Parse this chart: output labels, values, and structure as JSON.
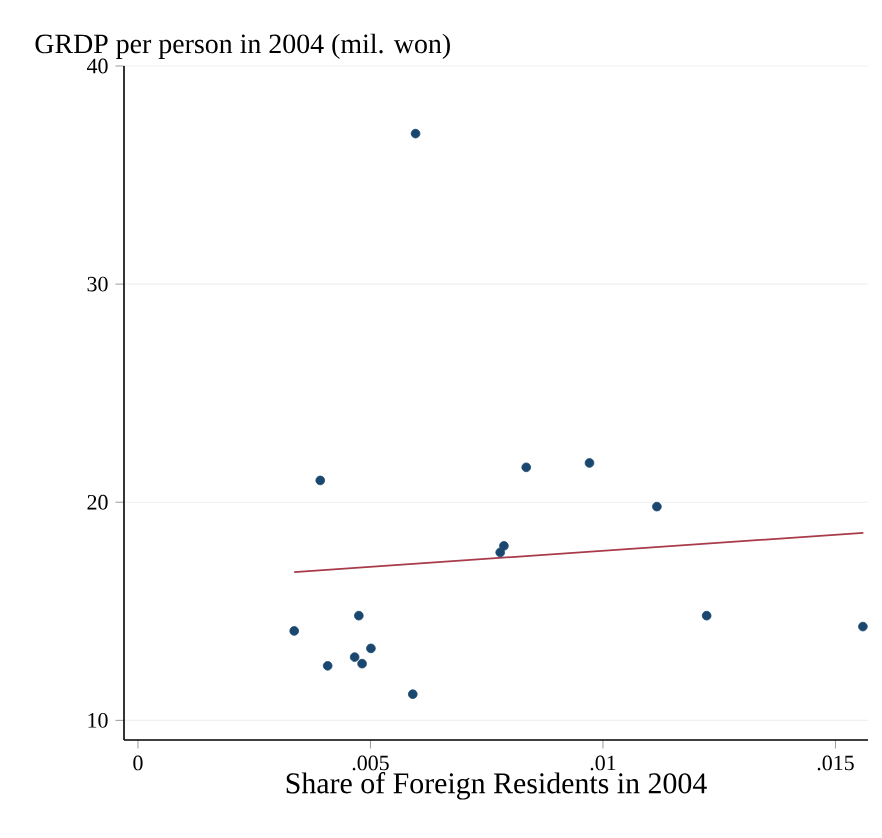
{
  "chart_data": {
    "type": "scatter",
    "xlabel": "Share of Foreign Residents in 2004",
    "ylabel": "GRDP per person in 2004 (mil. won)",
    "xlim": [
      -0.0003,
      0.0157
    ],
    "ylim": [
      9.1,
      40
    ],
    "xticks": [
      0,
      {
        "value": 0.005,
        "label": ".005"
      },
      {
        "value": 0.01,
        "label": ".01"
      },
      {
        "value": 0.015,
        "label": ".015"
      }
    ],
    "yticks": [
      10,
      20,
      30,
      40
    ],
    "grid": "y",
    "series": [
      {
        "marker": "circle",
        "color": "#1a476f",
        "x": [
          0.00336,
          0.00392,
          0.00408,
          0.00475,
          0.00466,
          0.00482,
          0.00501,
          0.00591,
          0.00597,
          0.00779,
          0.00787,
          0.00835,
          0.00971,
          0.01116,
          0.01223,
          0.01559
        ],
        "values": [
          14.1,
          21.0,
          12.5,
          14.8,
          12.9,
          12.6,
          13.3,
          11.2,
          36.9,
          17.7,
          18.0,
          21.6,
          21.8,
          19.8,
          14.8,
          14.3
        ]
      },
      {
        "type": "line",
        "marker": "none",
        "color": "#a83a4a",
        "x": [
          0.00336,
          0.0156
        ],
        "values": [
          16.8,
          18.6
        ]
      }
    ]
  }
}
